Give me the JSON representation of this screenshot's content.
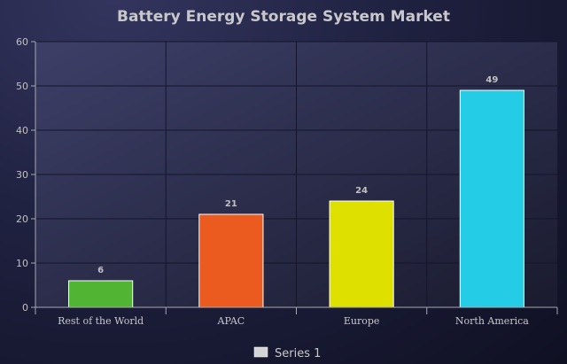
{
  "chart_data": {
    "type": "bar",
    "title": "Battery Energy Storage System Market",
    "categories": [
      "Rest of the World",
      "APAC",
      "Europe",
      "North America"
    ],
    "series": [
      {
        "name": "Series 1",
        "values": [
          6,
          21,
          24,
          49
        ]
      }
    ],
    "bar_colors": [
      "#52b433",
      "#eb5a1e",
      "#dee100",
      "#25cce6"
    ],
    "ylim": [
      0,
      60
    ],
    "yticks": [
      0,
      10,
      20,
      30,
      40,
      50,
      60
    ],
    "xlabel": "",
    "ylabel": "",
    "grid": true,
    "legend_position": "bottom-center"
  }
}
